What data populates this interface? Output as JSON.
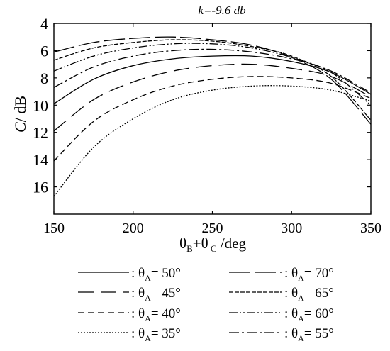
{
  "chart_data": {
    "type": "line",
    "title": "k=-9.6 db",
    "xlabel": {
      "pre": "θ",
      "sub1": "B",
      "mid": "+θ",
      "sub2": " C",
      "post": " /deg"
    },
    "ylabel": {
      "c": "C",
      "unit": "/ dB"
    },
    "xlim": [
      150,
      350
    ],
    "ylim": [
      4,
      18
    ],
    "y_inverted": true,
    "xticks": [
      150,
      200,
      250,
      300,
      350
    ],
    "yticks": [
      4,
      6,
      8,
      10,
      12,
      14,
      16
    ],
    "grid": false,
    "legend_placement": "below",
    "legend_col1_order": [
      "50°",
      "45°",
      "40°",
      "35°"
    ],
    "legend_col2_order": [
      "70°",
      "65°",
      "60°",
      "55°"
    ],
    "series": [
      {
        "name": "50°",
        "symbol": "θ",
        "sub": "A",
        "dash": "",
        "x": [
          150,
          175,
          200,
          225,
          250,
          275,
          300,
          325,
          350
        ],
        "y": [
          9.9,
          8.1,
          7.1,
          6.6,
          6.4,
          6.4,
          6.8,
          7.6,
          9.2
        ]
      },
      {
        "name": "45°",
        "symbol": "θ",
        "sub": "A",
        "dash": "22,10",
        "x": [
          150,
          175,
          200,
          225,
          250,
          275,
          300,
          325,
          350
        ],
        "y": [
          11.9,
          9.6,
          8.3,
          7.5,
          7.1,
          7.0,
          7.3,
          7.9,
          9.4
        ]
      },
      {
        "name": "40°",
        "symbol": "θ",
        "sub": "A",
        "dash": "9,5",
        "x": [
          150,
          175,
          200,
          225,
          250,
          275,
          300,
          325,
          350
        ],
        "y": [
          14.1,
          11.2,
          9.6,
          8.6,
          8.1,
          7.9,
          8.0,
          8.4,
          9.5
        ]
      },
      {
        "name": "35°",
        "symbol": "θ",
        "sub": "A",
        "dash": "2,2",
        "x": [
          150,
          175,
          200,
          225,
          250,
          275,
          300,
          325,
          350
        ],
        "y": [
          16.7,
          13.1,
          11.0,
          9.6,
          8.9,
          8.6,
          8.6,
          8.9,
          9.7
        ]
      },
      {
        "name": "70°",
        "symbol": "θ",
        "sub": "A",
        "dash": "30,6",
        "x": [
          150,
          175,
          200,
          225,
          250,
          275,
          300,
          325,
          350
        ],
        "y": [
          6.1,
          5.4,
          5.1,
          5.0,
          5.2,
          5.6,
          6.5,
          8.1,
          11.4
        ]
      },
      {
        "name": "65°",
        "symbol": "θ",
        "sub": "A",
        "dash": "6,2",
        "x": [
          150,
          175,
          200,
          225,
          250,
          275,
          300,
          325,
          350
        ],
        "y": [
          6.7,
          5.8,
          5.4,
          5.2,
          5.3,
          5.7,
          6.4,
          7.9,
          11.1
        ]
      },
      {
        "name": "60°",
        "symbol": "θ",
        "sub": "A",
        "dash": "12,3,2,3,2,3",
        "x": [
          150,
          175,
          200,
          225,
          250,
          275,
          300,
          325,
          350
        ],
        "y": [
          7.5,
          6.4,
          5.8,
          5.5,
          5.5,
          5.8,
          6.5,
          7.6,
          10.0
        ]
      },
      {
        "name": "55°",
        "symbol": "θ",
        "sub": "A",
        "dash": "14,4,3,4",
        "x": [
          150,
          175,
          200,
          225,
          250,
          275,
          300,
          325,
          350
        ],
        "y": [
          8.7,
          7.2,
          6.4,
          6.0,
          5.9,
          6.1,
          6.6,
          7.5,
          9.1
        ]
      }
    ]
  }
}
